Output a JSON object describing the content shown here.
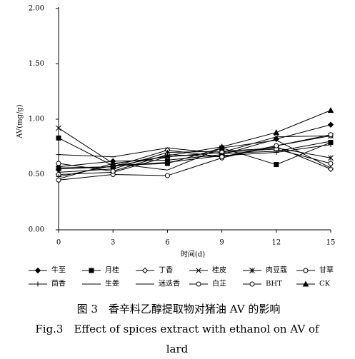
{
  "chart_data": {
    "type": "line",
    "y_label": "AV(mg/g)",
    "x_label": "时间(d)",
    "x": [
      0,
      3,
      6,
      9,
      12,
      15
    ],
    "xlim": [
      0,
      15
    ],
    "xticks": [
      0,
      3,
      6,
      9,
      12,
      15
    ],
    "ylim": [
      0,
      2
    ],
    "yticks": [
      {
        "value": 0,
        "label": "0.00"
      },
      {
        "value": 0.5,
        "label": "0.50"
      },
      {
        "value": 1,
        "label": "1.00"
      },
      {
        "value": 1.5,
        "label": "1.50"
      },
      {
        "value": 2,
        "label": "2.00"
      }
    ],
    "series": [
      {
        "name": "牛至",
        "color": "#000000",
        "marker": "diamond",
        "values": [
          0.57,
          0.62,
          0.63,
          0.68,
          0.82,
          0.95
        ]
      },
      {
        "name": "月桂",
        "color": "#000000",
        "marker": "square",
        "values": [
          0.83,
          0.58,
          0.6,
          0.74,
          0.59,
          0.79
        ]
      },
      {
        "name": "丁香",
        "color": "#000000",
        "marker": "diamond-open",
        "values": [
          0.55,
          0.57,
          0.72,
          0.66,
          0.75,
          0.55
        ]
      },
      {
        "name": "桂皮",
        "color": "#000000",
        "marker": "x",
        "values": [
          0.92,
          0.6,
          0.66,
          0.7,
          0.84,
          0.85
        ]
      },
      {
        "name": "肉豆蔻",
        "color": "#000000",
        "marker": "asterisk",
        "values": [
          0.52,
          0.55,
          0.7,
          0.71,
          0.74,
          0.65
        ]
      },
      {
        "name": "甘草",
        "color": "#000000",
        "marker": "circle-open",
        "values": [
          0.5,
          0.52,
          0.66,
          0.7,
          0.73,
          0.6
        ]
      },
      {
        "name": "茴香",
        "color": "#000000",
        "marker": "plus",
        "values": [
          0.48,
          0.58,
          0.61,
          0.67,
          0.7,
          0.77
        ]
      },
      {
        "name": "生姜",
        "color": "#000000",
        "marker": "dash",
        "values": [
          0.68,
          0.66,
          0.74,
          0.69,
          0.71,
          0.8
        ]
      },
      {
        "name": "迷迭香",
        "color": "#000000",
        "marker": "none",
        "values": [
          0.46,
          0.6,
          0.54,
          0.74,
          0.81,
          0.56
        ]
      },
      {
        "name": "白芷",
        "color": "#000000",
        "marker": "circle-open",
        "values": [
          0.45,
          0.5,
          0.49,
          0.65,
          0.76,
          0.85
        ]
      },
      {
        "name": "BHT",
        "color": "#000000",
        "marker": "circle-open",
        "values": [
          0.6,
          0.53,
          0.68,
          0.66,
          0.76,
          0.86
        ]
      },
      {
        "name": "CK",
        "color": "#000000",
        "marker": "triangle",
        "values": [
          0.56,
          0.57,
          0.67,
          0.75,
          0.88,
          1.08
        ]
      }
    ]
  },
  "caption": {
    "cn": "图 3　香辛料乙醇提取物对猪油 AV 的影响",
    "en_line1": "Fig.3　Effect of spices extract with ethanol on AV of",
    "en_line2": "lard"
  }
}
